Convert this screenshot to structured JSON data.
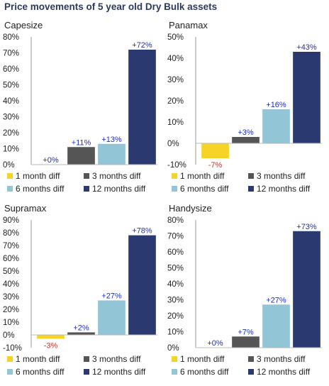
{
  "title": "Price movements of 5 year old Dry Bulk assets",
  "chart_data": [
    {
      "type": "bar",
      "title": "Capesize",
      "categories": [
        "1 month diff",
        "3 months diff",
        "6 months diff",
        "12 months diff"
      ],
      "values": [
        0,
        11,
        13,
        72
      ],
      "labels": [
        "+0%",
        "+11%",
        "+13%",
        "+72%"
      ],
      "yticks": [
        "0%",
        "10%",
        "20%",
        "30%",
        "40%",
        "50%",
        "60%",
        "70%",
        "80%"
      ],
      "ylim": [
        0,
        80
      ],
      "legend": "bottom"
    },
    {
      "type": "bar",
      "title": "Panamax",
      "categories": [
        "1 month diff",
        "3 months diff",
        "6 months diff",
        "12 months diff"
      ],
      "values": [
        -7,
        3,
        16,
        43
      ],
      "labels": [
        "-7%",
        "+3%",
        "+16%",
        "+43%"
      ],
      "yticks": [
        "-10%",
        "0%",
        "10%",
        "20%",
        "30%",
        "40%",
        "50%"
      ],
      "ylim": [
        -10,
        50
      ],
      "legend": "bottom"
    },
    {
      "type": "bar",
      "title": "Supramax",
      "categories": [
        "1 month diff",
        "3 months diff",
        "6 months diff",
        "12 months diff"
      ],
      "values": [
        -3,
        2,
        27,
        78
      ],
      "labels": [
        "-3%",
        "+2%",
        "+27%",
        "+78%"
      ],
      "yticks": [
        "-10%",
        "0%",
        "10%",
        "20%",
        "30%",
        "40%",
        "50%",
        "60%",
        "70%",
        "80%",
        "90%"
      ],
      "ylim": [
        -10,
        90
      ],
      "legend": "bottom"
    },
    {
      "type": "bar",
      "title": "Handysize",
      "categories": [
        "1 month diff",
        "3 months diff",
        "6 months diff",
        "12 months diff"
      ],
      "values": [
        0,
        7,
        27,
        73
      ],
      "labels": [
        "+0%",
        "+7%",
        "+27%",
        "+73%"
      ],
      "yticks": [
        "0%",
        "10%",
        "20%",
        "30%",
        "40%",
        "50%",
        "60%",
        "70%",
        "80%"
      ],
      "ylim": [
        0,
        80
      ],
      "legend": "bottom"
    }
  ],
  "colors": {
    "series": [
      "#f5d327",
      "#555555",
      "#92c5d6",
      "#2a3a70"
    ],
    "title": "#2b3a5e",
    "positive_label": "#1e2fb8",
    "negative_label": "#c0392b"
  }
}
